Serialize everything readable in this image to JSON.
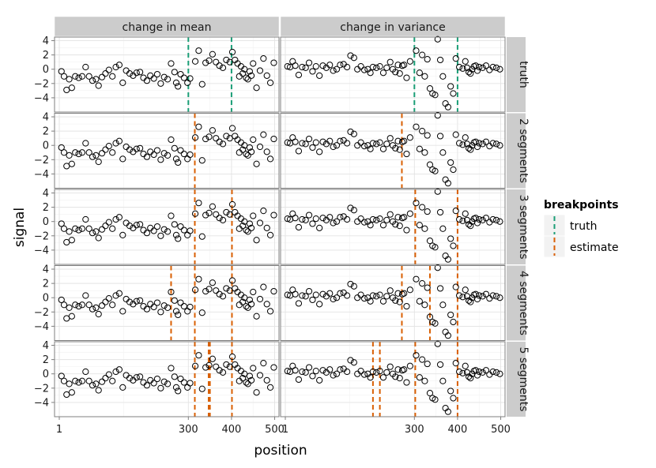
{
  "chart_data": {
    "type": "scatter",
    "title": "",
    "xlabel": "position",
    "ylabel": "signal",
    "xlim": [
      -10,
      510
    ],
    "ylim": [
      -6,
      4.5
    ],
    "x_ticks": [
      {
        "label": "1",
        "value": 1
      },
      {
        "label": "300",
        "value": 300
      },
      {
        "label": "400",
        "value": 400
      },
      {
        "label": "500",
        "value": 500
      }
    ],
    "y_ticks": [
      {
        "label": "4",
        "value": 4
      },
      {
        "label": "2",
        "value": 2
      },
      {
        "label": "0",
        "value": 0
      },
      {
        "label": "−2",
        "value": -2
      },
      {
        "label": "−4",
        "value": -4
      }
    ],
    "columns": [
      "change in mean",
      "change in variance"
    ],
    "rows": [
      "truth",
      "2 segments",
      "3 segments",
      "4 segments",
      "5 segments"
    ],
    "legend": {
      "title": "breakpoints",
      "entries": [
        {
          "label": "truth",
          "color": "#1b9e77"
        },
        {
          "label": "estimate",
          "color": "#d95f02"
        }
      ]
    },
    "series": [
      {
        "name": "change in mean",
        "x": [
          6,
          12,
          18,
          24,
          30,
          38,
          46,
          54,
          62,
          70,
          78,
          86,
          92,
          100,
          108,
          116,
          124,
          132,
          140,
          148,
          156,
          164,
          172,
          180,
          188,
          196,
          204,
          212,
          220,
          228,
          236,
          244,
          252,
          260,
          268,
          272,
          276,
          282,
          290,
          298,
          304,
          316,
          324,
          332,
          340,
          348,
          356,
          364,
          372,
          380,
          388,
          396,
          402,
          408,
          414,
          418,
          422,
          426,
          430,
          434,
          438,
          442,
          446,
          450,
          458,
          466,
          474,
          482,
          490,
          498
        ],
        "y": [
          -0.3,
          -1.0,
          -2.9,
          -1.4,
          -2.6,
          -1.0,
          -1.2,
          -1.0,
          0.3,
          -1.0,
          -1.6,
          -1.4,
          -2.3,
          -1.1,
          -0.6,
          -0.1,
          -1.0,
          0.3,
          0.6,
          -1.9,
          -0.2,
          -0.6,
          -0.9,
          -0.5,
          -0.4,
          -1.2,
          -1.6,
          -0.9,
          -1.3,
          -0.7,
          -2.0,
          -1.1,
          -1.4,
          0.8,
          -0.4,
          -1.9,
          -2.4,
          -0.7,
          -1.2,
          -1.9,
          -1.3,
          1.1,
          2.6,
          -2.1,
          0.9,
          1.2,
          2.1,
          1.0,
          0.5,
          0.2,
          1.3,
          1.0,
          2.4,
          1.3,
          0.8,
          -1.0,
          0.4,
          -0.6,
          0.0,
          -1.2,
          -1.4,
          -0.3,
          -0.9,
          0.8,
          -2.6,
          -0.2,
          1.5,
          -0.9,
          -1.9,
          0.9
        ]
      },
      {
        "name": "change in variance",
        "x": [
          6,
          12,
          18,
          24,
          32,
          40,
          48,
          56,
          64,
          72,
          80,
          88,
          96,
          104,
          112,
          120,
          128,
          136,
          144,
          152,
          160,
          168,
          176,
          184,
          192,
          198,
          204,
          212,
          220,
          228,
          236,
          244,
          250,
          256,
          262,
          266,
          272,
          276,
          282,
          290,
          304,
          312,
          318,
          324,
          330,
          336,
          342,
          348,
          354,
          360,
          366,
          372,
          378,
          384,
          390,
          396,
          404,
          412,
          418,
          422,
          426,
          430,
          434,
          438,
          442,
          446,
          450,
          458,
          466,
          474,
          482,
          490,
          498
        ],
        "y": [
          0.4,
          0.3,
          1.1,
          0.5,
          -0.8,
          0.3,
          0.2,
          0.9,
          -0.3,
          0.4,
          -0.9,
          0.5,
          0.2,
          0.6,
          -0.2,
          0.0,
          0.6,
          0.7,
          0.3,
          1.9,
          1.6,
          0.0,
          0.4,
          -0.1,
          0.0,
          -0.5,
          0.3,
          0.2,
          0.4,
          -0.5,
          0.2,
          1.0,
          0.0,
          -0.4,
          0.6,
          -0.6,
          0.5,
          0.6,
          -1.2,
          1.1,
          2.6,
          -0.5,
          2.0,
          -1.0,
          1.4,
          -2.7,
          -3.4,
          -3.6,
          4.2,
          1.3,
          -1.0,
          -4.8,
          -5.3,
          -2.4,
          -3.4,
          1.5,
          0.3,
          0.1,
          1.1,
          0.2,
          -0.4,
          -0.6,
          0.0,
          0.4,
          0.5,
          -0.2,
          0.3,
          0.2,
          0.5,
          -0.1,
          0.3,
          0.2,
          0.0
        ]
      }
    ],
    "breakpoints": {
      "change in mean": {
        "truth": {
          "truth": [
            300,
            400
          ],
          "estimate": []
        },
        "2 segments": {
          "truth": [],
          "estimate": [
            315
          ]
        },
        "3 segments": {
          "truth": [],
          "estimate": [
            315,
            401
          ]
        },
        "4 segments": {
          "truth": [],
          "estimate": [
            260,
            315,
            401
          ]
        },
        "5 segments": {
          "truth": [],
          "estimate": [
            315,
            347,
            350,
            401
          ]
        }
      },
      "change in variance": {
        "truth": {
          "truth": [
            300,
            400
          ],
          "estimate": []
        },
        "2 segments": {
          "truth": [],
          "estimate": [
            271
          ]
        },
        "3 segments": {
          "truth": [],
          "estimate": [
            302,
            400
          ]
        },
        "4 segments": {
          "truth": [],
          "estimate": [
            271,
            336,
            400
          ]
        },
        "5 segments": {
          "truth": [],
          "estimate": [
            204,
            220,
            302,
            400
          ]
        }
      }
    }
  }
}
